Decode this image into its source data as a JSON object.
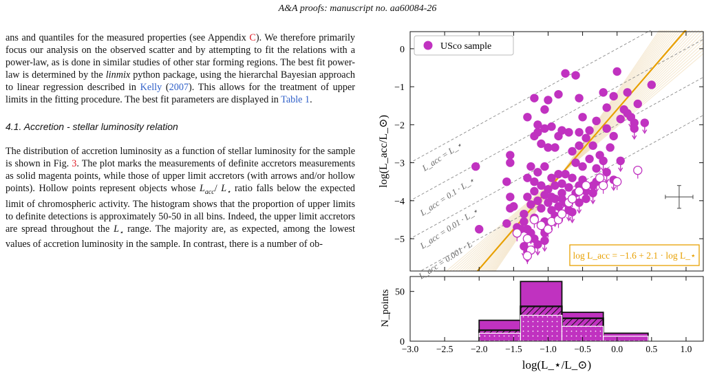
{
  "header": {
    "title": "A&A proofs: manuscript no. aa60084-26"
  },
  "text": {
    "p1_a": "ans and quantiles for the measured properties (see Appendix ",
    "p1_appendix": "C",
    "p1_b": "). We therefore primarily focus our analysis on the observed scatter and by attempting to fit the relations with a power-law, as is done in similar studies of other star forming regions. The best fit power-law is determined by the ",
    "p1_linmix": "linmix",
    "p1_c": " python package, using the hierarchal Bayesian approach to linear regression described in ",
    "p1_kelly": "Kelly",
    "p1_d": " (",
    "p1_year": "2007",
    "p1_e": "). This allows for the treatment of upper limits in the fitting procedure. The best fit parameters are displayed in ",
    "p1_table": "Table 1",
    "p1_f": ".",
    "section_title": "4.1. Accretion - stellar luminosity relation",
    "p2_a": "The distribution of accretion luminosity as a function of stellar luminosity for the sample is shown in Fig. ",
    "p2_fig": "3",
    "p2_b": ". The plot marks the measurements of definite accretors measurements as solid magenta points, while those of upper limit accretors (with arrows and/or hollow points). Hollow points represent objects whose ",
    "p2_lacc": "L",
    "p2_lacc_sub": "acc",
    "p2_slash": "/ ",
    "p2_lstar": "L",
    "p2_lstar_sub": "⋆",
    "p2_c": " ratio falls below the expected limit of chromospheric activity. The histogram shows that the proportion of upper limits to definite detections is approximately 50-50 in all bins. Indeed, the upper limit accretors are spread throughout the ",
    "p2_lstar2": "L",
    "p2_lstar2_sub": "⋆",
    "p2_d": " range. The majority are, as expected, among the lowest values of accretion luminosity in the sample. In contrast, there is a number of ob-"
  },
  "chart_data": [
    {
      "type": "scatter",
      "title": "",
      "xlabel": "",
      "ylabel": "log(L_acc/L_⊙)",
      "xlim": [
        -3.0,
        1.25
      ],
      "ylim": [
        -5.85,
        0.45
      ],
      "yticks": [
        0,
        -1,
        -2,
        -3,
        -4,
        -5
      ],
      "legend": {
        "label": "USco sample",
        "placement": "top-left"
      },
      "colors": {
        "points": "#c032c0",
        "fit": "#e8a000",
        "guides": "#8a8a8a",
        "fan": "#f0dcb8"
      },
      "fit": {
        "label": "log L_acc = −1.6 + 2.1 · log L_⋆",
        "intercept": -1.6,
        "slope": 2.1
      },
      "guides": [
        {
          "label": "L_acc = L_⋆",
          "offset": 0
        },
        {
          "label": "L_acc = 0.1 · L_⋆",
          "offset": -1
        },
        {
          "label": "L_acc = 0.01 · L_⋆",
          "offset": -2
        },
        {
          "label": "L_acc = 0.001 · L",
          "offset": -3
        }
      ],
      "errorbar": {
        "x": 0.9,
        "y": -3.9,
        "xerr": 0.2,
        "yerr": 0.3
      },
      "detections": [
        [
          -2.05,
          -3.1
        ],
        [
          -2.0,
          -4.75
        ],
        [
          -1.55,
          -2.8
        ],
        [
          -1.55,
          -3.0
        ],
        [
          -1.6,
          -3.5
        ],
        [
          -1.55,
          -3.9
        ],
        [
          -1.5,
          -4.15
        ],
        [
          -1.55,
          -4.2
        ],
        [
          -1.6,
          -4.6
        ],
        [
          -1.45,
          -4.7
        ],
        [
          -1.4,
          -4.75
        ],
        [
          -1.3,
          -1.8
        ],
        [
          -1.2,
          -1.3
        ],
        [
          -1.05,
          -1.6
        ],
        [
          -1.0,
          -1.35
        ],
        [
          -0.85,
          -1.2
        ],
        [
          -1.15,
          -2.0
        ],
        [
          -1.15,
          -2.2
        ],
        [
          -1.1,
          -2.5
        ],
        [
          -1.0,
          -2.6
        ],
        [
          -0.85,
          -2.3
        ],
        [
          -0.8,
          -2.15
        ],
        [
          -0.7,
          -2.2
        ],
        [
          -1.2,
          -2.3
        ],
        [
          -1.05,
          -2.1
        ],
        [
          -0.9,
          -2.6
        ],
        [
          -0.95,
          -2.05
        ],
        [
          -1.25,
          -3.1
        ],
        [
          -1.15,
          -3.25
        ],
        [
          -1.05,
          -3.1
        ],
        [
          -0.85,
          -3.3
        ],
        [
          -0.75,
          -3.3
        ],
        [
          -0.95,
          -3.4
        ],
        [
          -1.3,
          -3.4
        ],
        [
          -1.2,
          -3.5
        ],
        [
          -1.1,
          -3.6
        ],
        [
          -1.0,
          -3.7
        ],
        [
          -0.9,
          -3.6
        ],
        [
          -0.8,
          -3.55
        ],
        [
          -1.2,
          -3.75
        ],
        [
          -1.05,
          -3.85
        ],
        [
          -0.95,
          -3.9
        ],
        [
          -1.3,
          -3.9
        ],
        [
          -1.15,
          -4.0
        ],
        [
          -1.0,
          -4.05
        ],
        [
          -0.9,
          -3.95
        ],
        [
          -0.8,
          -3.8
        ],
        [
          -0.7,
          -3.65
        ],
        [
          -1.25,
          -4.1
        ],
        [
          -1.1,
          -4.2
        ],
        [
          -0.95,
          -4.25
        ],
        [
          -1.35,
          -4.35
        ],
        [
          -1.2,
          -4.45
        ],
        [
          -0.75,
          -0.65
        ],
        [
          -0.6,
          -0.7
        ],
        [
          -0.55,
          -1.3
        ],
        [
          -0.5,
          -1.8
        ],
        [
          -0.55,
          -2.2
        ],
        [
          -0.65,
          -2.7
        ],
        [
          -0.55,
          -2.55
        ],
        [
          -0.45,
          -2.35
        ],
        [
          -0.6,
          -3.0
        ],
        [
          -0.5,
          -3.1
        ],
        [
          -0.4,
          -2.9
        ],
        [
          -0.65,
          -3.4
        ],
        [
          -0.5,
          -3.45
        ],
        [
          -0.3,
          -3.15
        ],
        [
          -0.25,
          -2.8
        ],
        [
          -0.35,
          -2.55
        ],
        [
          -0.4,
          -2.15
        ],
        [
          -0.3,
          -1.9
        ],
        [
          -0.15,
          -1.55
        ],
        [
          -0.2,
          -1.15
        ],
        [
          -0.05,
          -1.25
        ],
        [
          0.0,
          -0.6
        ],
        [
          0.05,
          -1.85
        ],
        [
          0.1,
          -1.6
        ],
        [
          0.15,
          -1.7
        ],
        [
          0.2,
          -1.8
        ],
        [
          0.25,
          -1.95
        ],
        [
          0.3,
          -1.45
        ],
        [
          0.15,
          -1.15
        ],
        [
          0.5,
          -0.95
        ],
        [
          -0.15,
          -2.1
        ],
        [
          -0.1,
          -2.6
        ],
        [
          -0.05,
          -2.3
        ],
        [
          -0.35,
          -3.6
        ],
        [
          -0.6,
          -3.8
        ],
        [
          -0.45,
          -3.95
        ]
      ],
      "upper_limits": [
        [
          -1.35,
          -4.55
        ],
        [
          -1.3,
          -4.75
        ],
        [
          -1.25,
          -4.85
        ],
        [
          -1.2,
          -5.0
        ],
        [
          -1.15,
          -5.15
        ],
        [
          -1.35,
          -5.2
        ],
        [
          -1.3,
          -5.35
        ],
        [
          -1.05,
          -4.85
        ],
        [
          -1.05,
          -5.05
        ],
        [
          -0.9,
          -4.4
        ],
        [
          -0.85,
          -4.15
        ],
        [
          -0.8,
          -3.95
        ],
        [
          -0.75,
          -4.05
        ],
        [
          -0.7,
          -4.25
        ],
        [
          -0.65,
          -4.3
        ],
        [
          -1.05,
          -4.55
        ],
        [
          -0.55,
          -3.6
        ],
        [
          -0.45,
          -3.75
        ],
        [
          -0.35,
          -3.8
        ],
        [
          -0.3,
          -3.5
        ],
        [
          -0.15,
          -3.25
        ],
        [
          -0.05,
          -3.45
        ],
        [
          0.05,
          -2.95
        ],
        [
          0.2,
          -1.8
        ],
        [
          0.25,
          -2.1
        ],
        [
          0.4,
          -1.95
        ],
        [
          -0.55,
          -4.05
        ],
        [
          -0.2,
          -2.95
        ]
      ],
      "hollow": [
        [
          -1.45,
          -4.85
        ],
        [
          -1.3,
          -5.0
        ],
        [
          -1.25,
          -5.3
        ],
        [
          -1.2,
          -4.5
        ],
        [
          -1.1,
          -4.65
        ],
        [
          -1.0,
          -4.75
        ],
        [
          -0.95,
          -4.55
        ],
        [
          -0.85,
          -4.5
        ],
        [
          -0.8,
          -4.35
        ],
        [
          -0.7,
          -4.05
        ],
        [
          -0.65,
          -3.95
        ],
        [
          -0.55,
          -3.75
        ],
        [
          -0.45,
          -3.6
        ],
        [
          -0.25,
          -3.4
        ],
        [
          -0.2,
          -3.6
        ],
        [
          0.0,
          -3.5
        ],
        [
          0.3,
          -3.2
        ],
        [
          -1.3,
          -5.45
        ]
      ]
    },
    {
      "type": "bar",
      "title": "",
      "xlabel": "log(L_⋆/L_⊙)",
      "ylabel": "N_points",
      "xlim": [
        -3.0,
        1.25
      ],
      "ylim": [
        0,
        65
      ],
      "xticks": [
        -3.0,
        -2.5,
        -2.0,
        -1.5,
        -1.0,
        -0.5,
        0.0,
        0.5,
        1.0
      ],
      "xtick_labels": [
        "−3.0",
        "−2.5",
        "−2.0",
        "−1.5",
        "−1.0",
        "−0.5",
        "0.0",
        "0.5",
        "1.0"
      ],
      "yticks": [
        0,
        50
      ],
      "bin_edges": [
        -2.0,
        -1.4,
        -0.8,
        -0.2,
        0.45
      ],
      "series": [
        {
          "values": [
            21,
            60,
            29,
            8
          ],
          "style": "solid"
        },
        {
          "values": [
            11,
            35,
            23,
            0
          ],
          "style": "hatched"
        },
        {
          "values": [
            8,
            26,
            15,
            5
          ],
          "style": "dotted"
        }
      ]
    }
  ]
}
